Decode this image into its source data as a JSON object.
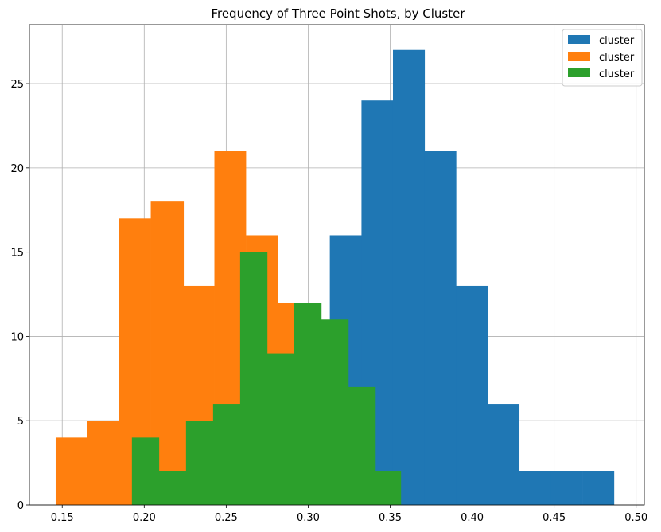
{
  "chart_data": {
    "type": "histogram",
    "title": "Frequency of Three Point Shots, by Cluster",
    "xlabel": "",
    "ylabel": "",
    "xlim": [
      0.13,
      0.505
    ],
    "ylim": [
      0,
      28.5
    ],
    "x_ticks": [
      "0.15",
      "0.20",
      "0.25",
      "0.30",
      "0.35",
      "0.40",
      "0.45",
      "0.50"
    ],
    "x_tick_values": [
      0.15,
      0.2,
      0.25,
      0.3,
      0.35,
      0.4,
      0.45,
      0.5
    ],
    "y_ticks": [
      "0",
      "5",
      "10",
      "15",
      "20",
      "25"
    ],
    "y_tick_values": [
      0,
      5,
      10,
      15,
      20,
      25
    ],
    "grid": true,
    "legend_position": "top-right",
    "series": [
      {
        "name": "cluster",
        "color": "#1f77b4",
        "bin_edges": [
          0.2595,
          0.2788,
          0.298,
          0.3132,
          0.3325,
          0.3517,
          0.371,
          0.3902,
          0.4095,
          0.4287,
          0.448,
          0.4672,
          0.4865
        ],
        "counts": [
          0,
          2,
          7,
          16,
          24,
          27,
          21,
          13,
          6,
          2,
          2,
          2
        ]
      },
      {
        "name": "cluster",
        "color": "#ff7f0e",
        "bin_edges": [
          0.146,
          0.1653,
          0.1846,
          0.204,
          0.224,
          0.2428,
          0.262,
          0.2813,
          0.3001,
          0.319,
          0.34
        ],
        "counts": [
          4,
          5,
          17,
          18,
          13,
          21,
          16,
          12,
          9,
          3
        ]
      },
      {
        "name": "cluster",
        "color": "#2ca02c",
        "bin_edges": [
          0.1925,
          0.209,
          0.2255,
          0.242,
          0.2585,
          0.275,
          0.2915,
          0.308,
          0.3245,
          0.341,
          0.3565
        ],
        "counts": [
          4,
          2,
          5,
          6,
          15,
          9,
          12,
          11,
          7,
          2
        ]
      }
    ]
  }
}
